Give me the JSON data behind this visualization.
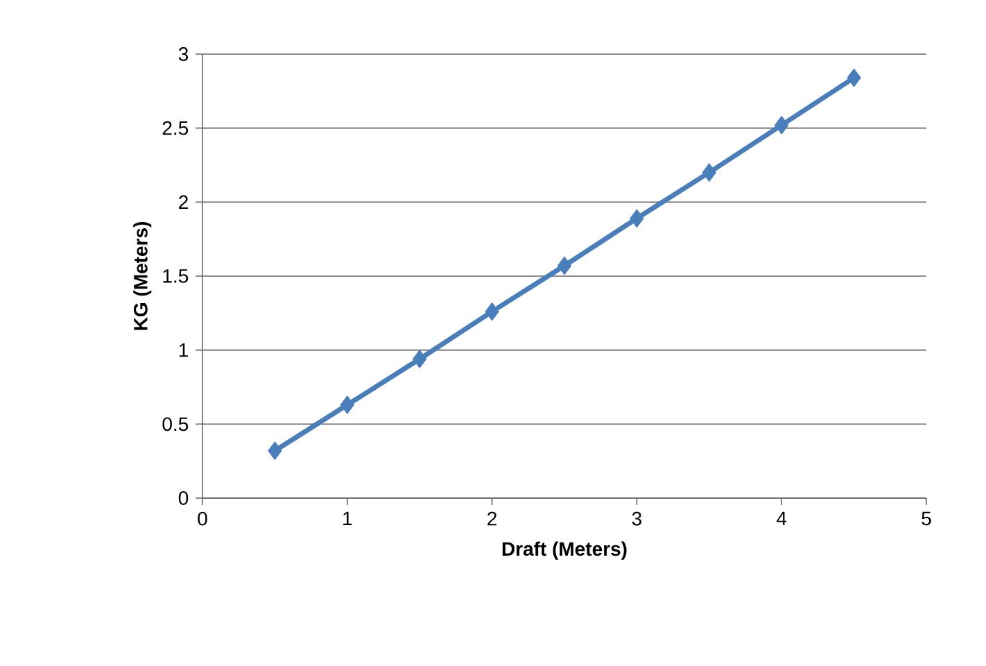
{
  "chart_data": {
    "type": "line",
    "xlabel": "Draft (Meters)",
    "ylabel": "KG (Meters)",
    "x": [
      0.5,
      1,
      1.5,
      2,
      2.5,
      3,
      3.5,
      4,
      4.5
    ],
    "series": [
      {
        "color": "#4a7ebb",
        "values": [
          0.32,
          0.63,
          0.94,
          1.26,
          1.57,
          1.89,
          2.2,
          2.52,
          2.84
        ]
      }
    ],
    "xlim": [
      0,
      5
    ],
    "xticks": [
      0,
      1,
      2,
      3,
      4,
      5
    ],
    "ylim": [
      0,
      3
    ],
    "yticks": [
      0,
      0.5,
      1,
      1.5,
      2,
      2.5,
      3
    ],
    "grid": "y",
    "marker": "diamond",
    "line_style": "solid"
  }
}
